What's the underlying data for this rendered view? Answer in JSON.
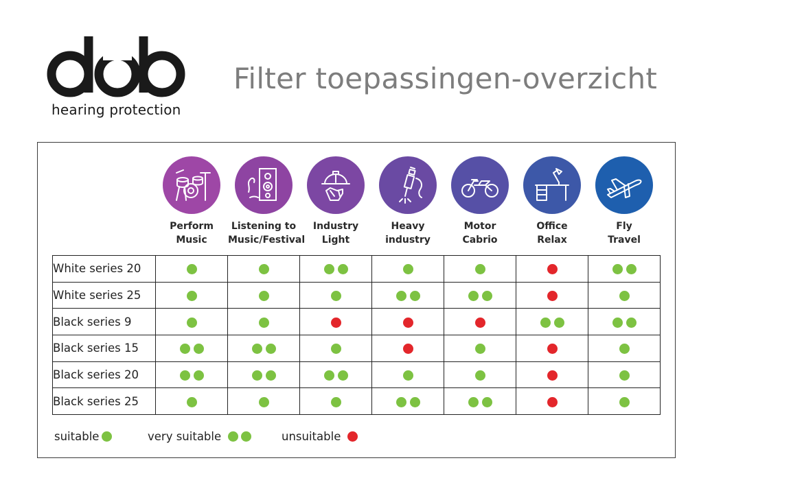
{
  "brand": {
    "logo_text": "dob",
    "tagline": "hearing protection"
  },
  "title": "Filter toepassingen-overzicht",
  "colors": {
    "suitable": "#7dc242",
    "unsuitable": "#e3262b",
    "title_gray": "#7d7d7d"
  },
  "applications": [
    {
      "line1": "Perform",
      "line2": "Music",
      "icon": "drum-kit-icon",
      "color": "#9e47a6"
    },
    {
      "line1": "Listening to",
      "line2": "Music/Festival",
      "icon": "speaker-icon",
      "color": "#8e44a2"
    },
    {
      "line1": "Industry",
      "line2": "Light",
      "icon": "hardhat-gloves-icon",
      "color": "#7c47a3"
    },
    {
      "line1": "Heavy",
      "line2": "industry",
      "icon": "jackhammer-icon",
      "color": "#6a4aa3"
    },
    {
      "line1": "Motor",
      "line2": "Cabrio",
      "icon": "motorcycle-icon",
      "color": "#5650a6"
    },
    {
      "line1": "Office",
      "line2": "Relax",
      "icon": "desk-lamp-icon",
      "color": "#3d58a8"
    },
    {
      "line1": "Fly",
      "line2": "Travel",
      "icon": "airplane-icon",
      "color": "#1e5fae"
    }
  ],
  "rows": [
    {
      "label": "White series 20",
      "ratings": [
        "suitable",
        "suitable",
        "very suitable",
        "suitable",
        "suitable",
        "unsuitable",
        "very suitable"
      ]
    },
    {
      "label": "White series 25",
      "ratings": [
        "suitable",
        "suitable",
        "suitable",
        "very suitable",
        "very suitable",
        "unsuitable",
        "suitable"
      ]
    },
    {
      "label": "Black series 9",
      "ratings": [
        "suitable",
        "suitable",
        "unsuitable",
        "unsuitable",
        "unsuitable",
        "very suitable",
        "very suitable"
      ]
    },
    {
      "label": "Black series 15",
      "ratings": [
        "very suitable",
        "very suitable",
        "suitable",
        "unsuitable",
        "suitable",
        "unsuitable",
        "suitable"
      ]
    },
    {
      "label": "Black series 20",
      "ratings": [
        "very suitable",
        "very suitable",
        "very suitable",
        "suitable",
        "suitable",
        "unsuitable",
        "suitable"
      ]
    },
    {
      "label": "Black series 25",
      "ratings": [
        "suitable",
        "suitable",
        "suitable",
        "very suitable",
        "very suitable",
        "unsuitable",
        "suitable"
      ]
    }
  ],
  "legend": {
    "suitable": "suitable",
    "very_suitable": "very suitable",
    "unsuitable": "unsuitable"
  }
}
